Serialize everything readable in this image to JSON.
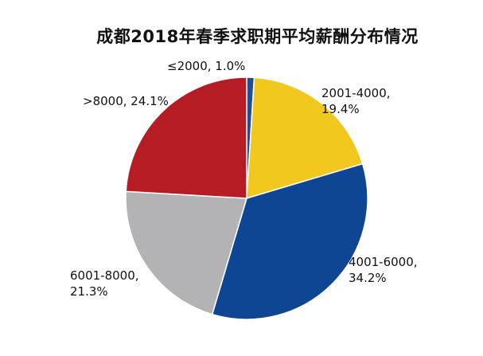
{
  "chart_data": {
    "type": "pie",
    "title": "成都2018年春季求职期平均薪酬分布情况",
    "slices": [
      {
        "label": "≤2000",
        "value": 1.0,
        "value_label": "1.0%",
        "color": "#1f4e99"
      },
      {
        "label": "2001-4000",
        "value": 19.4,
        "value_label": "19.4%",
        "color": "#f2c81f"
      },
      {
        "label": "4001-6000",
        "value": 34.2,
        "value_label": "34.2%",
        "color": "#0e4694"
      },
      {
        "label": "6001-8000",
        "value": 21.3,
        "value_label": "21.3%",
        "color": "#b3b3b6"
      },
      {
        "label": ">8000",
        "value": 24.1,
        "value_label": "24.1%",
        "color": "#b61c24"
      }
    ],
    "start_angle_deg": 90,
    "direction": "clockwise",
    "legend": "none"
  }
}
